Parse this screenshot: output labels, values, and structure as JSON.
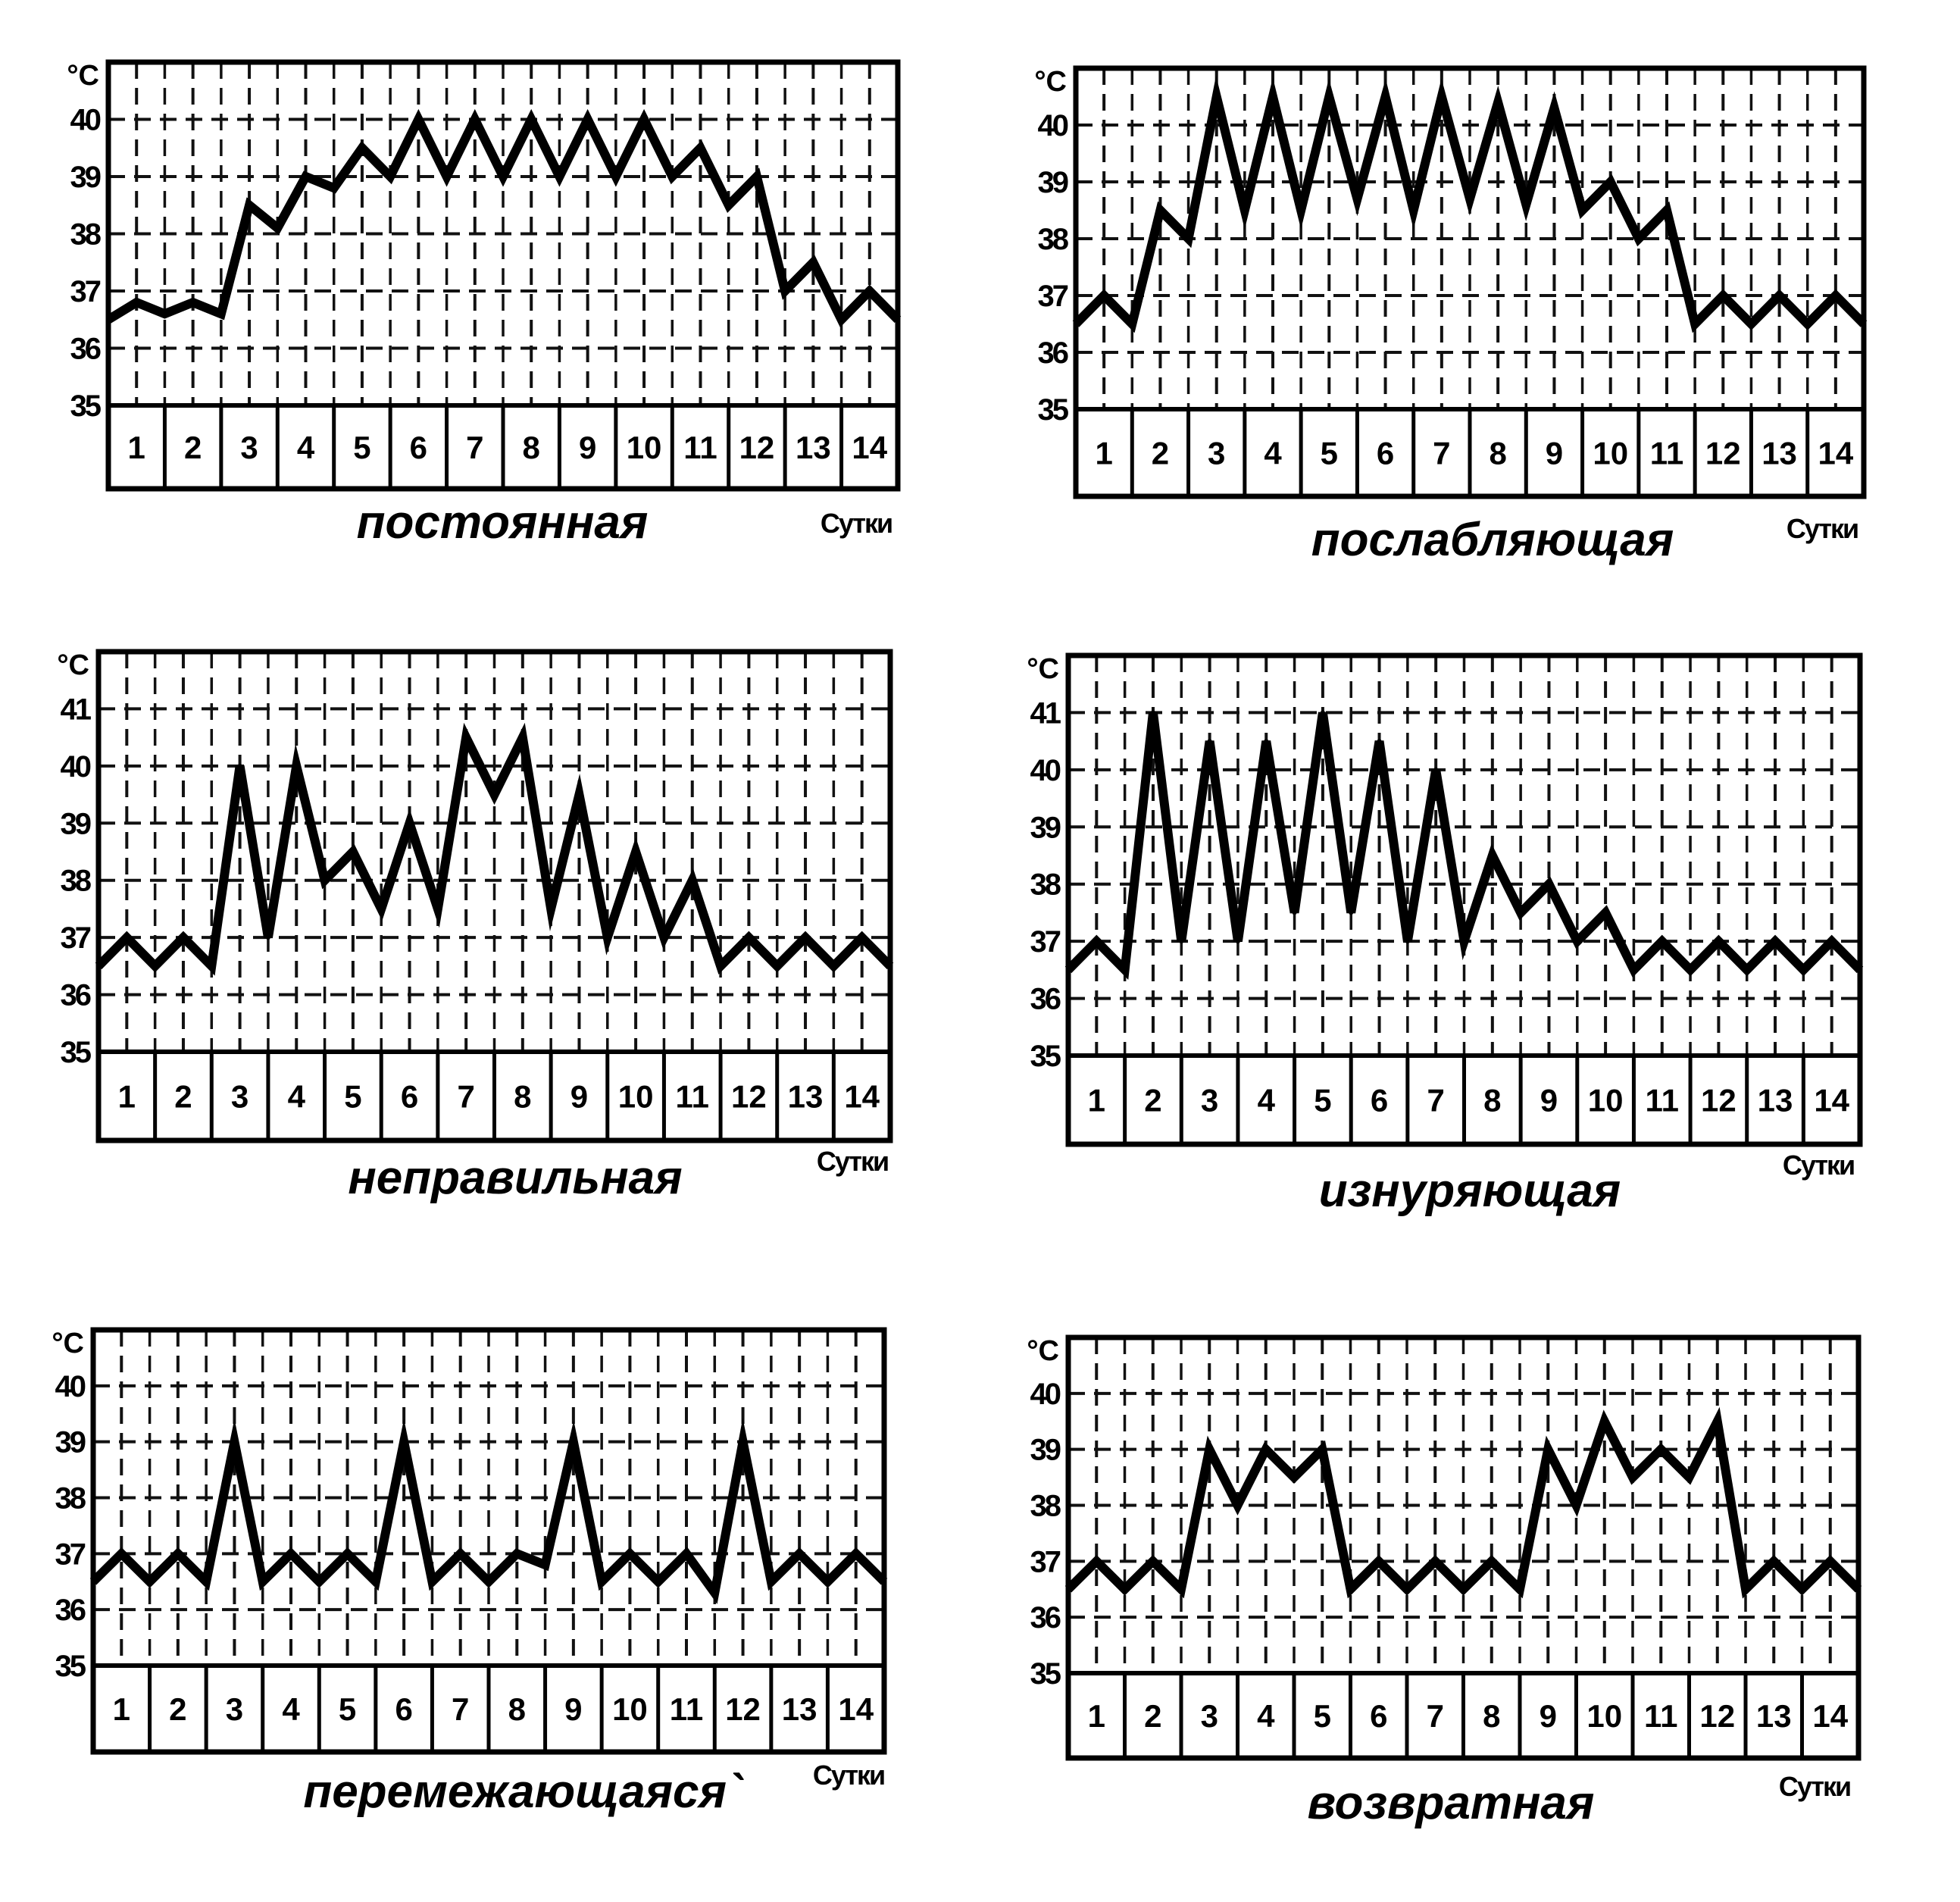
{
  "chart_data": [
    {
      "type": "line",
      "title": "постоянная",
      "xlabel": "Сутки",
      "ylabel": "°С",
      "yticks": [
        35,
        36,
        37,
        38,
        39,
        40
      ],
      "ylim": [
        35,
        41
      ],
      "categories": [
        "1",
        "2",
        "3",
        "4",
        "5",
        "6",
        "7",
        "8",
        "9",
        "10",
        "11",
        "12",
        "13",
        "14"
      ],
      "x": [
        0,
        0.5,
        1,
        1.5,
        2,
        2.5,
        3,
        3.5,
        4,
        4.5,
        5,
        5.5,
        6,
        6.5,
        7,
        7.5,
        8,
        8.5,
        9,
        9.5,
        10,
        10.5,
        11,
        11.5,
        12,
        12.5,
        13,
        13.5,
        14
      ],
      "values": [
        36.5,
        36.8,
        36.6,
        36.8,
        36.6,
        38.5,
        38.1,
        39.0,
        38.8,
        39.5,
        39.0,
        40.0,
        39.0,
        40.0,
        39.0,
        40.0,
        39.0,
        40.0,
        39.0,
        40.0,
        39.0,
        39.5,
        38.5,
        39.0,
        37.0,
        37.5,
        36.5,
        37.0,
        36.5
      ],
      "grid": true
    },
    {
      "type": "line",
      "title": "послабляющая",
      "xlabel": "Сутки",
      "ylabel": "°С",
      "yticks": [
        35,
        36,
        37,
        38,
        39,
        40
      ],
      "ylim": [
        35,
        41
      ],
      "categories": [
        "1",
        "2",
        "3",
        "4",
        "5",
        "6",
        "7",
        "8",
        "9",
        "10",
        "11",
        "12",
        "13",
        "14"
      ],
      "x": [
        0,
        0.5,
        1,
        1.5,
        2,
        2.5,
        3,
        3.5,
        4,
        4.5,
        5,
        5.5,
        6,
        6.5,
        7,
        7.5,
        8,
        8.5,
        9,
        9.5,
        10,
        10.5,
        11,
        11.5,
        12,
        12.5,
        13,
        13.5,
        14
      ],
      "values": [
        36.5,
        37.0,
        36.5,
        38.5,
        38.0,
        40.5,
        38.5,
        40.5,
        38.5,
        40.5,
        38.7,
        40.5,
        38.5,
        40.5,
        38.7,
        40.4,
        38.6,
        40.3,
        38.5,
        39.0,
        38.0,
        38.5,
        36.5,
        37.0,
        36.5,
        37.0,
        36.5,
        37.0,
        36.5
      ],
      "grid": true
    },
    {
      "type": "line",
      "title": "неправильная",
      "xlabel": "Сутки",
      "ylabel": "°С",
      "yticks": [
        35,
        36,
        37,
        38,
        39,
        40,
        41
      ],
      "ylim": [
        35,
        42
      ],
      "categories": [
        "1",
        "2",
        "3",
        "4",
        "5",
        "6",
        "7",
        "8",
        "9",
        "10",
        "11",
        "12",
        "13",
        "14"
      ],
      "x": [
        0,
        0.5,
        1,
        1.5,
        2,
        2.5,
        3,
        3.5,
        4,
        4.5,
        5,
        5.5,
        6,
        6.5,
        7,
        7.5,
        8,
        8.5,
        9,
        9.5,
        10,
        10.5,
        11,
        11.5,
        12,
        12.5,
        13,
        13.5,
        14
      ],
      "values": [
        36.5,
        37.0,
        36.5,
        37.0,
        36.5,
        40.0,
        37.0,
        40.0,
        38.0,
        38.5,
        37.5,
        39.0,
        37.5,
        40.5,
        39.5,
        40.5,
        37.5,
        39.5,
        37.0,
        38.5,
        37.0,
        38.0,
        36.5,
        37.0,
        36.5,
        37.0,
        36.5,
        37.0,
        36.5
      ],
      "grid": true
    },
    {
      "type": "line",
      "title": "изнуряющая",
      "xlabel": "Сутки",
      "ylabel": "°С",
      "yticks": [
        35,
        36,
        37,
        38,
        39,
        40,
        41
      ],
      "ylim": [
        35,
        42
      ],
      "categories": [
        "1",
        "2",
        "3",
        "4",
        "5",
        "6",
        "7",
        "8",
        "9",
        "10",
        "11",
        "12",
        "13",
        "14"
      ],
      "x": [
        0,
        0.5,
        1,
        1.5,
        2,
        2.5,
        3,
        3.5,
        4,
        4.5,
        5,
        5.5,
        6,
        6.5,
        7,
        7.5,
        8,
        8.5,
        9,
        9.5,
        10,
        10.5,
        11,
        11.5,
        12,
        12.5,
        13,
        13.5,
        14
      ],
      "values": [
        36.5,
        37.0,
        36.5,
        41.0,
        37.0,
        40.5,
        37.0,
        40.5,
        37.5,
        41.0,
        37.5,
        40.5,
        37.0,
        40.0,
        37.0,
        38.5,
        37.5,
        38.0,
        37.0,
        37.5,
        36.5,
        37.0,
        36.5,
        37.0,
        36.5,
        37.0,
        36.5,
        37.0,
        36.5
      ],
      "grid": true
    },
    {
      "type": "line",
      "title": "перемежающаяся`",
      "xlabel": "Сутки",
      "ylabel": "°С",
      "yticks": [
        35,
        36,
        37,
        38,
        39,
        40
      ],
      "ylim": [
        35,
        41
      ],
      "categories": [
        "1",
        "2",
        "3",
        "4",
        "5",
        "6",
        "7",
        "8",
        "9",
        "10",
        "11",
        "12",
        "13",
        "14"
      ],
      "x": [
        0,
        0.5,
        1,
        1.5,
        2,
        2.5,
        3,
        3.5,
        4,
        4.5,
        5,
        5.5,
        6,
        6.5,
        7,
        7.5,
        8,
        8.5,
        9,
        9.5,
        10,
        10.5,
        11,
        11.5,
        12,
        12.5,
        13,
        13.5,
        14
      ],
      "values": [
        36.5,
        37.0,
        36.5,
        37.0,
        36.5,
        39.0,
        36.5,
        37.0,
        36.5,
        37.0,
        36.5,
        39.0,
        36.5,
        37.0,
        36.5,
        37.0,
        36.8,
        39.0,
        36.5,
        37.0,
        36.5,
        37.0,
        36.3,
        39.0,
        36.5,
        37.0,
        36.5,
        37.0,
        36.5
      ],
      "grid": true
    },
    {
      "type": "line",
      "title": "возвратная",
      "xlabel": "Сутки",
      "ylabel": "°С",
      "yticks": [
        35,
        36,
        37,
        38,
        39,
        40
      ],
      "ylim": [
        35,
        41
      ],
      "categories": [
        "1",
        "2",
        "3",
        "4",
        "5",
        "6",
        "7",
        "8",
        "9",
        "10",
        "11",
        "12",
        "13",
        "14"
      ],
      "x": [
        0,
        0.5,
        1,
        1.5,
        2,
        2.5,
        3,
        3.5,
        4,
        4.5,
        5,
        5.5,
        6,
        6.5,
        7,
        7.5,
        8,
        8.5,
        9,
        9.5,
        10,
        10.5,
        11,
        11.5,
        12,
        12.5,
        13,
        13.5,
        14
      ],
      "values": [
        36.5,
        37.0,
        36.5,
        37.0,
        36.5,
        39.0,
        38.0,
        39.0,
        38.5,
        39.0,
        36.5,
        37.0,
        36.5,
        37.0,
        36.5,
        37.0,
        36.5,
        39.0,
        38.0,
        39.5,
        38.5,
        39.0,
        38.5,
        39.5,
        36.5,
        37.0,
        36.5,
        37.0,
        36.5
      ],
      "grid": true
    }
  ]
}
